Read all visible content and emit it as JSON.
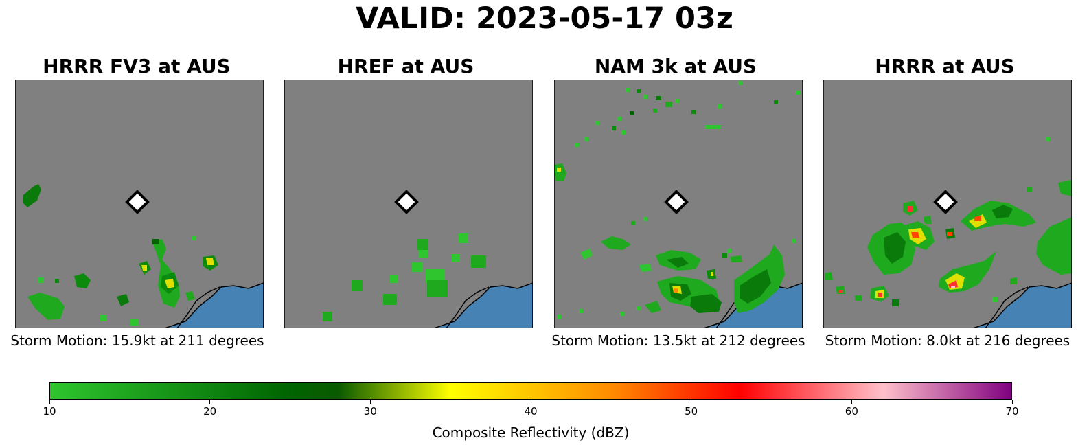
{
  "chart_data": {
    "type": "heatmap",
    "title": "VALID: 2023-05-17 03z",
    "panels": [
      {
        "title": "HRRR FV3 at AUS",
        "caption": "Storm Motion: 15.9kt at 211 degrees"
      },
      {
        "title": "HREF at AUS",
        "caption": ""
      },
      {
        "title": "NAM 3k at AUS",
        "caption": "Storm Motion: 13.5kt at 212 degrees"
      },
      {
        "title": "HRRR at AUS",
        "caption": "Storm Motion: 8.0kt at 216 degrees"
      }
    ],
    "colorbar": {
      "label": "Composite Reflectivity (dBZ)",
      "range": [
        10,
        70
      ],
      "ticks": [
        10,
        20,
        30,
        40,
        50,
        60,
        70
      ],
      "stops": [
        {
          "value": 10,
          "color": "#2ec52e"
        },
        {
          "value": 25,
          "color": "#006400"
        },
        {
          "value": 28,
          "color": "#0a5a00"
        },
        {
          "value": 35,
          "color": "#ffff00"
        },
        {
          "value": 45,
          "color": "#ff8c00"
        },
        {
          "value": 53,
          "color": "#ff0000"
        },
        {
          "value": 62,
          "color": "#ffc0cb"
        },
        {
          "value": 70,
          "color": "#800080"
        }
      ]
    },
    "map_colors": {
      "land": "#808080",
      "water": "#4682b4",
      "marker": "#ffffff"
    }
  }
}
